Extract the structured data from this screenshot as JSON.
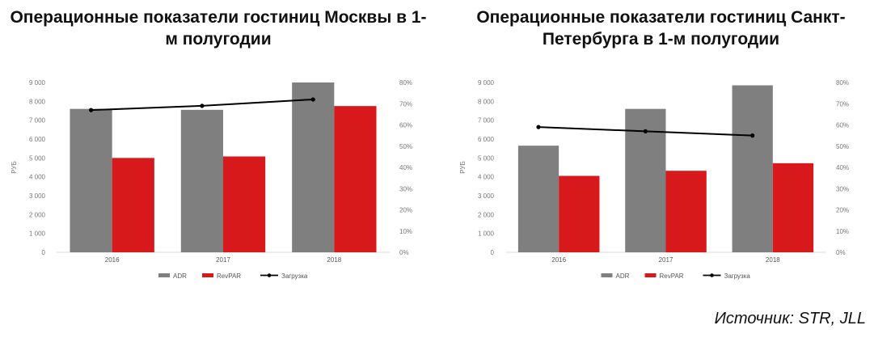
{
  "source": "Источник: STR, JLL",
  "colors": {
    "adr": "#7f7f7f",
    "revpar": "#d7191c",
    "occupancy": "#000000",
    "axis_text": "#777777"
  },
  "chart_data": [
    {
      "type": "bar",
      "title": "Операционные показатели гостиниц Москвы в 1-м полугодии",
      "categories": [
        "2016",
        "2017",
        "2018"
      ],
      "ylabel": "РУБ",
      "ylim": [
        0,
        9000
      ],
      "y_ticks": [
        "0",
        "1 000",
        "2 000",
        "3 000",
        "4 000",
        "5 000",
        "6 000",
        "7 000",
        "8 000",
        "9 000"
      ],
      "y2lim": [
        0,
        80
      ],
      "y2_ticks": [
        "0%",
        "10%",
        "20%",
        "30%",
        "40%",
        "50%",
        "60%",
        "70%",
        "80%"
      ],
      "series": [
        {
          "name": "ADR",
          "kind": "bar",
          "values": [
            7600,
            7550,
            9000
          ]
        },
        {
          "name": "RevPAR",
          "kind": "bar",
          "values": [
            5000,
            5080,
            7750
          ]
        },
        {
          "name": "Загрузка",
          "kind": "line",
          "axis": "right",
          "values": [
            67,
            69,
            72
          ]
        }
      ],
      "legend": "bottom",
      "grid": false
    },
    {
      "type": "bar",
      "title": "Операционные показатели гостиниц Санкт-Петербурга в 1-м полугодии",
      "categories": [
        "2016",
        "2017",
        "2018"
      ],
      "ylabel": "РУБ",
      "ylim": [
        0,
        9000
      ],
      "y_ticks": [
        "0",
        "1 000",
        "2 000",
        "3 000",
        "4 000",
        "5 000",
        "6 000",
        "7 000",
        "8 000",
        "9 000"
      ],
      "y2lim": [
        0,
        80
      ],
      "y2_ticks": [
        "0%",
        "10%",
        "20%",
        "30%",
        "40%",
        "50%",
        "60%",
        "70%",
        "80%"
      ],
      "series": [
        {
          "name": "ADR",
          "kind": "bar",
          "values": [
            5650,
            7600,
            8850
          ]
        },
        {
          "name": "RevPAR",
          "kind": "bar",
          "values": [
            4050,
            4320,
            4720
          ]
        },
        {
          "name": "Загрузка",
          "kind": "line",
          "axis": "right",
          "values": [
            59,
            57,
            55
          ]
        }
      ],
      "legend": "bottom",
      "grid": false
    }
  ]
}
